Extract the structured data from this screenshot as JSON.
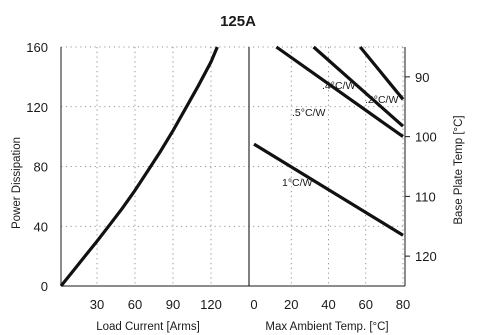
{
  "chart_data": {
    "type": "line",
    "title": "125A",
    "left_panel": {
      "xlabel": "Load Current  [Arms]",
      "ylabel": "Power Dissipation",
      "xlim": [
        0,
        140
      ],
      "ylim": [
        0,
        160
      ],
      "x_ticks": [
        30,
        60,
        90,
        120
      ],
      "y_ticks": [
        0,
        40,
        80,
        120,
        160
      ],
      "series": [
        {
          "x": [
            0,
            10,
            20,
            30,
            40,
            50,
            60,
            70,
            80,
            90,
            100,
            110,
            120,
            125
          ],
          "y": [
            0,
            10,
            20,
            30,
            41,
            52,
            64,
            77,
            90,
            104,
            119,
            134,
            150,
            160
          ]
        }
      ]
    },
    "right_panel": {
      "xlabel": "Max Ambient Temp. [°C]",
      "y2label": "Base Plate Temp [°C]",
      "xlim": [
        0,
        80
      ],
      "x_ticks": [
        0,
        20,
        40,
        60,
        80
      ],
      "y2_ticks": [
        90,
        100,
        110,
        120
      ],
      "y2_range_at_power_0_and_160": [
        125,
        85
      ],
      "series": [
        {
          "name": ".2°C/W",
          "x": [
            57,
            80
          ],
          "y": [
            160,
            125
          ]
        },
        {
          "name": ".4°C/W",
          "x": [
            32,
            80
          ],
          "y": [
            160,
            107
          ]
        },
        {
          "name": ".5°C/W",
          "x": [
            12,
            80
          ],
          "y": [
            160,
            100
          ]
        },
        {
          "name": "1°C/W",
          "x": [
            0,
            80
          ],
          "y": [
            95,
            34
          ]
        }
      ]
    }
  }
}
